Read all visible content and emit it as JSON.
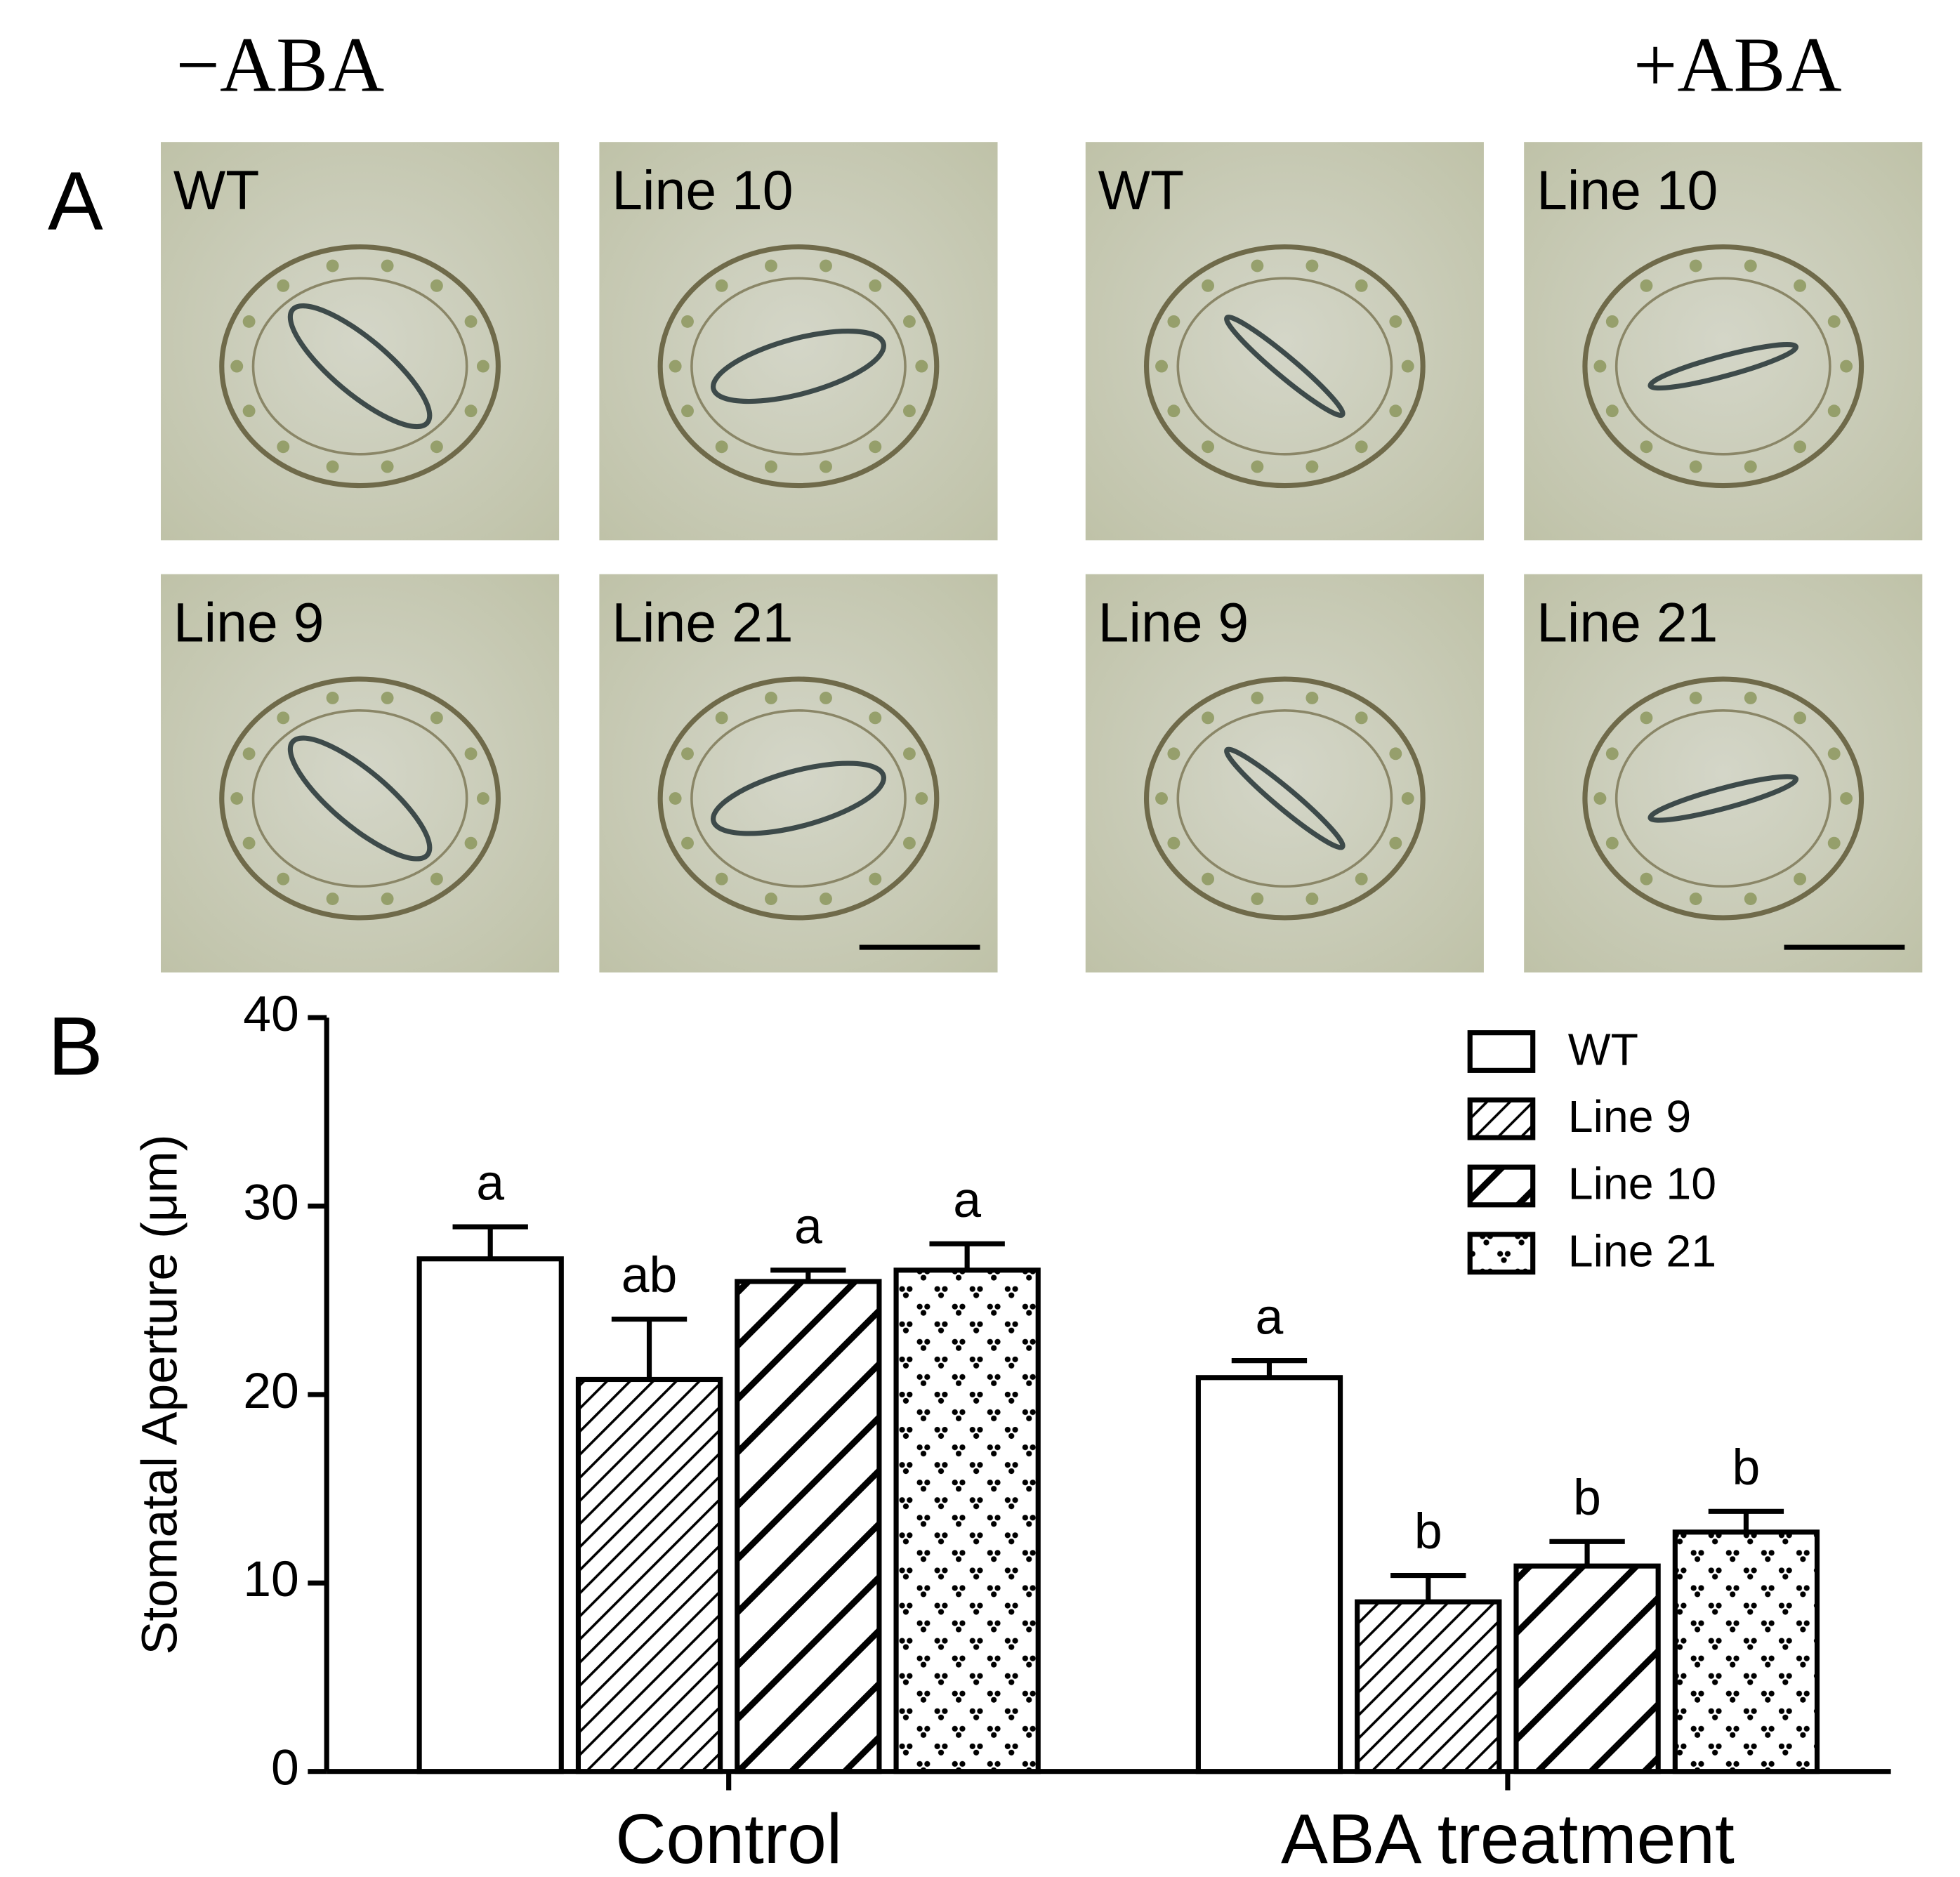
{
  "panel_a": {
    "label": "A",
    "conditions": [
      {
        "title": "−ABA",
        "images": [
          "WT",
          "Line 10",
          "Line 9",
          "Line 21"
        ]
      },
      {
        "title": "+ABA",
        "images": [
          "WT",
          "Line 10",
          "Line 9",
          "Line 21"
        ]
      }
    ]
  },
  "chart_data": {
    "type": "bar",
    "panel_label": "B",
    "y_label": "Stomatal Aperture (μm)",
    "categories": [
      "Control",
      "ABA treatment"
    ],
    "series": [
      {
        "name": "WT",
        "pattern": "none",
        "color": "#000000",
        "values": [
          27.2,
          20.9
        ],
        "errors": [
          1.7,
          0.9
        ],
        "annotations": [
          "a",
          "a"
        ]
      },
      {
        "name": "Line 9",
        "pattern": "hatch-thin",
        "color": "#000000",
        "values": [
          20.8,
          9.0
        ],
        "errors": [
          3.2,
          1.4
        ],
        "annotations": [
          "ab",
          "b"
        ]
      },
      {
        "name": "Line 10",
        "pattern": "hatch-thick",
        "color": "#000000",
        "values": [
          26.0,
          10.9
        ],
        "errors": [
          0.6,
          1.3
        ],
        "annotations": [
          "a",
          "b"
        ]
      },
      {
        "name": "Line 21",
        "pattern": "dots",
        "color": "#000000",
        "values": [
          26.6,
          12.7
        ],
        "errors": [
          1.4,
          1.1
        ],
        "annotations": [
          "a",
          "b"
        ]
      }
    ],
    "ylim": [
      0,
      40
    ],
    "yticks": [
      0,
      10,
      20,
      30,
      40
    ],
    "legend": "top-right"
  }
}
